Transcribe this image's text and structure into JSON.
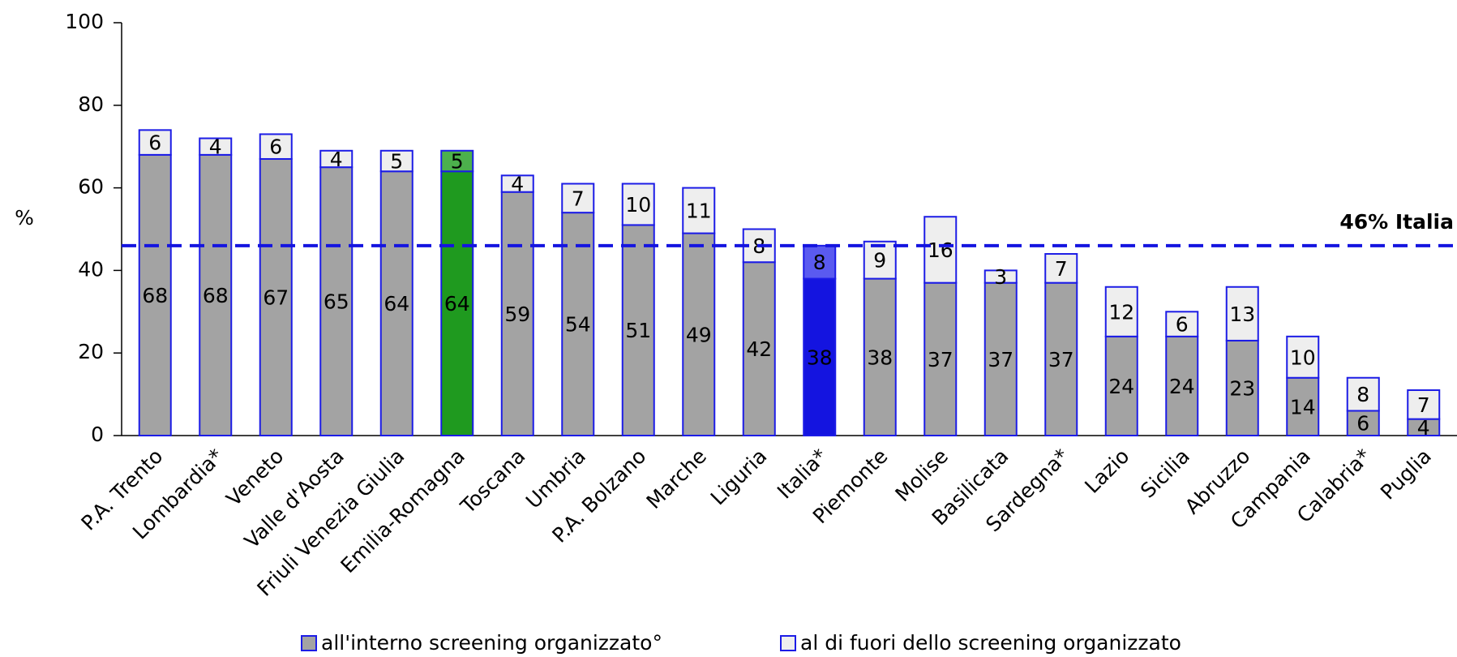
{
  "chart_data": {
    "type": "stacked_bar",
    "y_label": "%",
    "categories": [
      "P.A. Trento",
      "Lombardia*",
      "Veneto",
      "Valle d'Aosta",
      "Friuli Venezia Giulia",
      "Emilia-Romagna",
      "Toscana",
      "Umbria",
      "P.A. Bolzano",
      "Marche",
      "Liguria",
      "Italia*",
      "Piemonte",
      "Molise",
      "Basilicata",
      "Sardegna*",
      "Lazio",
      "Sicilia",
      "Abruzzo",
      "Campania",
      "Calabria*",
      "Puglia"
    ],
    "series": [
      {
        "name": "all'interno screening organizzato°",
        "color": "#a3a3a3",
        "values": [
          68,
          68,
          67,
          65,
          64,
          64,
          59,
          54,
          51,
          49,
          42,
          38,
          38,
          37,
          37,
          37,
          24,
          24,
          23,
          14,
          6,
          4
        ]
      },
      {
        "name": "al di fuori dello screening organizzato",
        "color": "#eeeeee",
        "values": [
          6,
          4,
          6,
          4,
          5,
          5,
          4,
          7,
          10,
          11,
          8,
          8,
          9,
          16,
          3,
          7,
          12,
          6,
          13,
          10,
          8,
          7
        ]
      }
    ],
    "category_colors": [
      null,
      null,
      null,
      null,
      null,
      [
        "#1f9a1f",
        "#4cb04c"
      ],
      null,
      null,
      null,
      null,
      null,
      [
        "#1414e0",
        "#5a5af0"
      ],
      null,
      null,
      null,
      null,
      null,
      null,
      null,
      null,
      null,
      null
    ],
    "edge_color": "#1c1ce6",
    "ylim": [
      0,
      100
    ],
    "yticks": [
      0,
      20,
      40,
      60,
      80,
      100
    ],
    "reference_line": {
      "value": 46,
      "label": "46% Italia",
      "color": "#1414e0"
    }
  }
}
